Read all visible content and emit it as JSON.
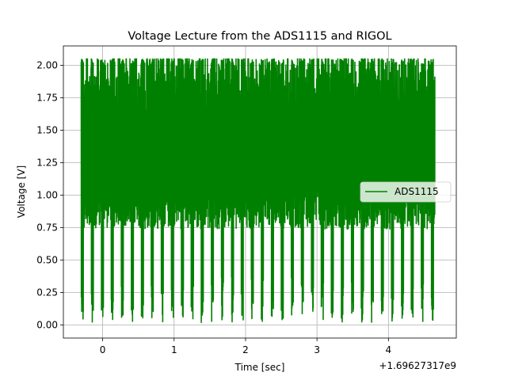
{
  "chart_data": {
    "type": "line",
    "title": "Voltage Lecture from the ADS1115 and RIGOL",
    "xlabel": "Time [sec]",
    "ylabel": "Voltage [V]",
    "x_offset_label": "+1.69627317e9",
    "xlim": [
      -0.55,
      4.95
    ],
    "ylim": [
      -0.1,
      2.15
    ],
    "xticks": [
      0,
      1,
      2,
      3,
      4
    ],
    "xtick_labels": [
      "0",
      "1",
      "2",
      "3",
      "4"
    ],
    "yticks": [
      0.0,
      0.25,
      0.5,
      0.75,
      1.0,
      1.25,
      1.5,
      1.75,
      2.0
    ],
    "ytick_labels": [
      "0.00",
      "0.25",
      "0.50",
      "0.75",
      "1.00",
      "1.25",
      "1.50",
      "1.75",
      "2.00"
    ],
    "grid": true,
    "legend_position": "center-right",
    "series": [
      {
        "name": "ADS1115",
        "color": "#008000",
        "x_range": [
          -0.3,
          4.65
        ],
        "signal": {
          "baseline": 1.25,
          "max": 2.05,
          "min": 0.02,
          "burst_period_sec": 0.14
        },
        "description": "dense oscillating voltage trace"
      }
    ]
  }
}
